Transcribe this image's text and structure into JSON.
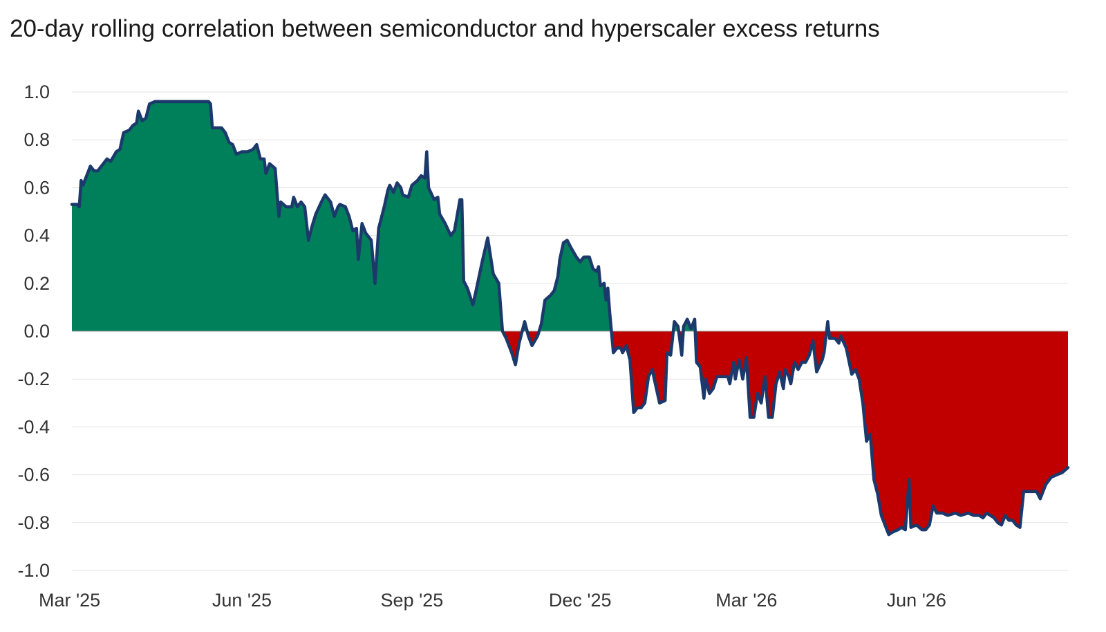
{
  "chart_data": {
    "type": "area",
    "title": "20-day rolling correlation between semiconductor and hyperscaler excess returns",
    "xlabel": "",
    "ylabel": "",
    "ylim": [
      -1.0,
      1.0
    ],
    "y_ticks": [
      {
        "value": 1.0,
        "label": "1.0"
      },
      {
        "value": 0.8,
        "label": "0.8"
      },
      {
        "value": 0.6,
        "label": "0.6"
      },
      {
        "value": 0.4,
        "label": "0.4"
      },
      {
        "value": 0.2,
        "label": "0.2"
      },
      {
        "value": 0.0,
        "label": "0.0"
      },
      {
        "value": -0.2,
        "label": "-0.2"
      },
      {
        "value": -0.4,
        "label": "-0.4"
      },
      {
        "value": -0.6,
        "label": "-0.6"
      },
      {
        "value": -0.8,
        "label": "-0.8"
      },
      {
        "value": -1.0,
        "label": "-1.0"
      }
    ],
    "x_ticks": [
      {
        "date": "2025-03-01",
        "label": "Mar '25"
      },
      {
        "date": "2025-06-01",
        "label": "Jun '25"
      },
      {
        "date": "2025-09-01",
        "label": "Sep '25"
      },
      {
        "date": "2025-12-01",
        "label": "Dec '25"
      },
      {
        "date": "2026-03-01",
        "label": "Mar '26"
      },
      {
        "date": "2026-06-01",
        "label": "Jun '26"
      }
    ],
    "xlim": [
      "2025-03-01",
      "2026-08-22"
    ],
    "grid": "horizontal",
    "colors": {
      "line": "#1b3a6b",
      "positive_fill": "#00805a",
      "negative_fill": "#c00000",
      "grid": "#e3e3e3"
    },
    "series": [
      {
        "points": [
          [
            "2025-03-01",
            0.53
          ],
          [
            "2025-03-04",
            0.53
          ],
          [
            "2025-03-05",
            0.52
          ],
          [
            "2025-03-06",
            0.63
          ],
          [
            "2025-03-07",
            0.61
          ],
          [
            "2025-03-10",
            0.67
          ],
          [
            "2025-03-11",
            0.69
          ],
          [
            "2025-03-13",
            0.67
          ],
          [
            "2025-03-15",
            0.67
          ],
          [
            "2025-03-18",
            0.7
          ],
          [
            "2025-03-20",
            0.72
          ],
          [
            "2025-03-22",
            0.71
          ],
          [
            "2025-03-25",
            0.75
          ],
          [
            "2025-03-27",
            0.76
          ],
          [
            "2025-03-29",
            0.83
          ],
          [
            "2025-04-01",
            0.84
          ],
          [
            "2025-04-03",
            0.86
          ],
          [
            "2025-04-05",
            0.87
          ],
          [
            "2025-04-06",
            0.92
          ],
          [
            "2025-04-08",
            0.88
          ],
          [
            "2025-04-10",
            0.89
          ],
          [
            "2025-04-12",
            0.95
          ],
          [
            "2025-04-15",
            0.96
          ],
          [
            "2025-04-25",
            0.96
          ],
          [
            "2025-05-05",
            0.96
          ],
          [
            "2025-05-12",
            0.96
          ],
          [
            "2025-05-14",
            0.96
          ],
          [
            "2025-05-15",
            0.95
          ],
          [
            "2025-05-16",
            0.85
          ],
          [
            "2025-05-19",
            0.85
          ],
          [
            "2025-05-21",
            0.85
          ],
          [
            "2025-05-23",
            0.83
          ],
          [
            "2025-05-25",
            0.79
          ],
          [
            "2025-05-27",
            0.78
          ],
          [
            "2025-05-29",
            0.74
          ],
          [
            "2025-06-01",
            0.75
          ],
          [
            "2025-06-04",
            0.75
          ],
          [
            "2025-06-07",
            0.76
          ],
          [
            "2025-06-09",
            0.78
          ],
          [
            "2025-06-11",
            0.72
          ],
          [
            "2025-06-13",
            0.72
          ],
          [
            "2025-06-14",
            0.66
          ],
          [
            "2025-06-16",
            0.7
          ],
          [
            "2025-06-19",
            0.68
          ],
          [
            "2025-06-21",
            0.48
          ],
          [
            "2025-06-22",
            0.54
          ],
          [
            "2025-06-25",
            0.52
          ],
          [
            "2025-06-28",
            0.52
          ],
          [
            "2025-06-29",
            0.56
          ],
          [
            "2025-07-01",
            0.52
          ],
          [
            "2025-07-03",
            0.54
          ],
          [
            "2025-07-05",
            0.52
          ],
          [
            "2025-07-07",
            0.38
          ],
          [
            "2025-07-09",
            0.44
          ],
          [
            "2025-07-11",
            0.49
          ],
          [
            "2025-07-14",
            0.54
          ],
          [
            "2025-07-16",
            0.57
          ],
          [
            "2025-07-19",
            0.54
          ],
          [
            "2025-07-21",
            0.48
          ],
          [
            "2025-07-23",
            0.52
          ],
          [
            "2025-07-24",
            0.53
          ],
          [
            "2025-07-27",
            0.52
          ],
          [
            "2025-07-29",
            0.48
          ],
          [
            "2025-07-31",
            0.42
          ],
          [
            "2025-08-02",
            0.43
          ],
          [
            "2025-08-03",
            0.3
          ],
          [
            "2025-08-05",
            0.45
          ],
          [
            "2025-08-07",
            0.41
          ],
          [
            "2025-08-10",
            0.38
          ],
          [
            "2025-08-12",
            0.2
          ],
          [
            "2025-08-14",
            0.43
          ],
          [
            "2025-08-17",
            0.52
          ],
          [
            "2025-08-19",
            0.59
          ],
          [
            "2025-08-20",
            0.61
          ],
          [
            "2025-08-22",
            0.58
          ],
          [
            "2025-08-24",
            0.62
          ],
          [
            "2025-08-26",
            0.6
          ],
          [
            "2025-08-27",
            0.57
          ],
          [
            "2025-08-30",
            0.56
          ],
          [
            "2025-09-01",
            0.61
          ],
          [
            "2025-09-04",
            0.63
          ],
          [
            "2025-09-06",
            0.65
          ],
          [
            "2025-09-08",
            0.64
          ],
          [
            "2025-09-09",
            0.75
          ],
          [
            "2025-09-10",
            0.6
          ],
          [
            "2025-09-13",
            0.55
          ],
          [
            "2025-09-15",
            0.56
          ],
          [
            "2025-09-16",
            0.49
          ],
          [
            "2025-09-19",
            0.45
          ],
          [
            "2025-09-22",
            0.4
          ],
          [
            "2025-09-24",
            0.42
          ],
          [
            "2025-09-27",
            0.55
          ],
          [
            "2025-09-28",
            0.55
          ],
          [
            "2025-09-29",
            0.21
          ],
          [
            "2025-10-01",
            0.18
          ],
          [
            "2025-10-04",
            0.11
          ],
          [
            "2025-10-06",
            0.18
          ],
          [
            "2025-10-09",
            0.29
          ],
          [
            "2025-10-12",
            0.39
          ],
          [
            "2025-10-15",
            0.24
          ],
          [
            "2025-10-18",
            0.2
          ],
          [
            "2025-10-20",
            0.0
          ],
          [
            "2025-10-22",
            -0.03
          ],
          [
            "2025-10-25",
            -0.09
          ],
          [
            "2025-10-27",
            -0.14
          ],
          [
            "2025-10-29",
            -0.05
          ],
          [
            "2025-11-01",
            0.04
          ],
          [
            "2025-11-03",
            -0.02
          ],
          [
            "2025-11-05",
            -0.06
          ],
          [
            "2025-11-08",
            -0.02
          ],
          [
            "2025-11-10",
            0.03
          ],
          [
            "2025-11-12",
            0.13
          ],
          [
            "2025-11-15",
            0.15
          ],
          [
            "2025-11-17",
            0.17
          ],
          [
            "2025-11-19",
            0.23
          ],
          [
            "2025-11-20",
            0.3
          ],
          [
            "2025-11-22",
            0.37
          ],
          [
            "2025-11-24",
            0.38
          ],
          [
            "2025-11-26",
            0.35
          ],
          [
            "2025-11-29",
            0.31
          ],
          [
            "2025-12-01",
            0.29
          ],
          [
            "2025-12-03",
            0.31
          ],
          [
            "2025-12-06",
            0.31
          ],
          [
            "2025-12-08",
            0.26
          ],
          [
            "2025-12-10",
            0.25
          ],
          [
            "2025-12-11",
            0.27
          ],
          [
            "2025-12-12",
            0.19
          ],
          [
            "2025-12-14",
            0.2
          ],
          [
            "2025-12-15",
            0.13
          ],
          [
            "2025-12-16",
            0.18
          ],
          [
            "2025-12-17",
            0.08
          ],
          [
            "2025-12-19",
            -0.09
          ],
          [
            "2025-12-21",
            -0.07
          ],
          [
            "2025-12-23",
            -0.07
          ],
          [
            "2025-12-24",
            -0.09
          ],
          [
            "2025-12-26",
            -0.06
          ],
          [
            "2025-12-28",
            -0.12
          ],
          [
            "2025-12-30",
            -0.34
          ],
          [
            "2026-01-01",
            -0.32
          ],
          [
            "2026-01-03",
            -0.32
          ],
          [
            "2026-01-05",
            -0.3
          ],
          [
            "2026-01-07",
            -0.19
          ],
          [
            "2026-01-09",
            -0.16
          ],
          [
            "2026-01-11",
            -0.23
          ],
          [
            "2026-01-13",
            -0.3
          ],
          [
            "2026-01-16",
            -0.29
          ],
          [
            "2026-01-17",
            -0.09
          ],
          [
            "2026-01-19",
            -0.1
          ],
          [
            "2026-01-21",
            0.04
          ],
          [
            "2026-01-23",
            0.02
          ],
          [
            "2026-01-25",
            -0.1
          ],
          [
            "2026-01-26",
            0.02
          ],
          [
            "2026-01-28",
            0.05
          ],
          [
            "2026-01-30",
            0.01
          ],
          [
            "2026-02-01",
            0.05
          ],
          [
            "2026-02-02",
            -0.13
          ],
          [
            "2026-02-04",
            -0.15
          ],
          [
            "2026-02-06",
            -0.28
          ],
          [
            "2026-02-07",
            -0.2
          ],
          [
            "2026-02-09",
            -0.26
          ],
          [
            "2026-02-11",
            -0.24
          ],
          [
            "2026-02-13",
            -0.19
          ],
          [
            "2026-02-16",
            -0.19
          ],
          [
            "2026-02-19",
            -0.19
          ],
          [
            "2026-02-20",
            -0.22
          ],
          [
            "2026-02-22",
            -0.13
          ],
          [
            "2026-02-23",
            -0.2
          ],
          [
            "2026-02-25",
            -0.12
          ],
          [
            "2026-02-27",
            -0.2
          ],
          [
            "2026-03-01",
            -0.11
          ],
          [
            "2026-03-03",
            -0.36
          ],
          [
            "2026-03-05",
            -0.36
          ],
          [
            "2026-03-07",
            -0.26
          ],
          [
            "2026-03-09",
            -0.3
          ],
          [
            "2026-03-11",
            -0.19
          ],
          [
            "2026-03-12",
            -0.27
          ],
          [
            "2026-03-13",
            -0.36
          ],
          [
            "2026-03-15",
            -0.36
          ],
          [
            "2026-03-17",
            -0.22
          ],
          [
            "2026-03-19",
            -0.17
          ],
          [
            "2026-03-21",
            -0.24
          ],
          [
            "2026-03-22",
            -0.16
          ],
          [
            "2026-03-24",
            -0.19
          ],
          [
            "2026-03-25",
            -0.22
          ],
          [
            "2026-03-27",
            -0.13
          ],
          [
            "2026-03-29",
            -0.16
          ],
          [
            "2026-03-31",
            -0.13
          ],
          [
            "2026-04-02",
            -0.13
          ],
          [
            "2026-04-04",
            -0.1
          ],
          [
            "2026-04-06",
            -0.04
          ],
          [
            "2026-04-08",
            -0.17
          ],
          [
            "2026-04-11",
            -0.12
          ],
          [
            "2026-04-12",
            -0.09
          ],
          [
            "2026-04-14",
            0.04
          ],
          [
            "2026-04-15",
            -0.03
          ],
          [
            "2026-04-18",
            -0.03
          ],
          [
            "2026-04-20",
            -0.05
          ],
          [
            "2026-04-21",
            -0.02
          ],
          [
            "2026-04-24",
            -0.07
          ],
          [
            "2026-04-27",
            -0.18
          ],
          [
            "2026-04-29",
            -0.16
          ],
          [
            "2026-05-01",
            -0.2
          ],
          [
            "2026-05-03",
            -0.3
          ],
          [
            "2026-05-05",
            -0.46
          ],
          [
            "2026-05-07",
            -0.43
          ],
          [
            "2026-05-09",
            -0.62
          ],
          [
            "2026-05-11",
            -0.68
          ],
          [
            "2026-05-13",
            -0.77
          ],
          [
            "2026-05-17",
            -0.85
          ],
          [
            "2026-05-19",
            -0.84
          ],
          [
            "2026-05-22",
            -0.83
          ],
          [
            "2026-05-24",
            -0.82
          ],
          [
            "2026-05-26",
            -0.83
          ],
          [
            "2026-05-28",
            -0.62
          ],
          [
            "2026-05-29",
            -0.82
          ],
          [
            "2026-06-01",
            -0.81
          ],
          [
            "2026-06-04",
            -0.83
          ],
          [
            "2026-06-06",
            -0.83
          ],
          [
            "2026-06-08",
            -0.81
          ],
          [
            "2026-06-10",
            -0.73
          ],
          [
            "2026-06-12",
            -0.76
          ],
          [
            "2026-06-15",
            -0.76
          ],
          [
            "2026-06-18",
            -0.77
          ],
          [
            "2026-06-22",
            -0.76
          ],
          [
            "2026-06-25",
            -0.77
          ],
          [
            "2026-06-29",
            -0.76
          ],
          [
            "2026-07-02",
            -0.77
          ],
          [
            "2026-07-05",
            -0.77
          ],
          [
            "2026-07-07",
            -0.78
          ],
          [
            "2026-07-09",
            -0.76
          ],
          [
            "2026-07-11",
            -0.77
          ],
          [
            "2026-07-13",
            -0.78
          ],
          [
            "2026-07-15",
            -0.8
          ],
          [
            "2026-07-17",
            -0.81
          ],
          [
            "2026-07-19",
            -0.77
          ],
          [
            "2026-07-21",
            -0.79
          ],
          [
            "2026-07-23",
            -0.79
          ],
          [
            "2026-07-25",
            -0.81
          ],
          [
            "2026-07-27",
            -0.82
          ],
          [
            "2026-07-29",
            -0.67
          ],
          [
            "2026-08-02",
            -0.67
          ],
          [
            "2026-08-05",
            -0.67
          ],
          [
            "2026-08-07",
            -0.7
          ],
          [
            "2026-08-10",
            -0.64
          ],
          [
            "2026-08-13",
            -0.61
          ],
          [
            "2026-08-16",
            -0.6
          ],
          [
            "2026-08-19",
            -0.59
          ],
          [
            "2026-08-22",
            -0.57
          ]
        ]
      }
    ]
  }
}
